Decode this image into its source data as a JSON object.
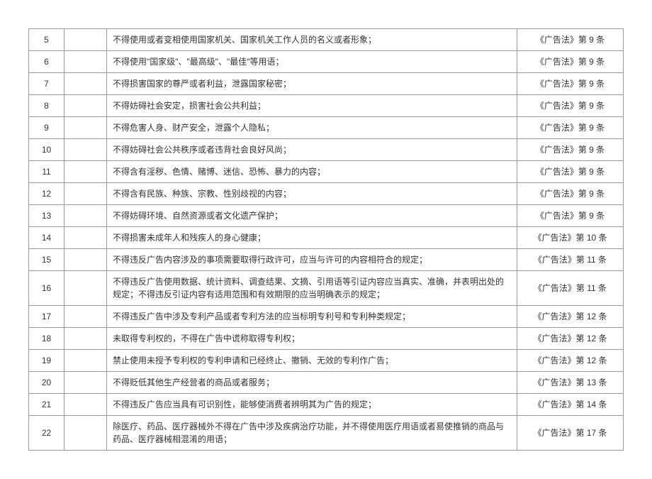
{
  "rows": [
    {
      "num": "5",
      "content": "不得使用或者变相使用国家机关、国家机关工作人员的名义或者形象；",
      "ref": "《广告法》第 9 条"
    },
    {
      "num": "6",
      "content": "不得使用\"国家级\"、\"最高级\"、\"最佳\"等用语；",
      "ref": "《广告法》第 9 条"
    },
    {
      "num": "7",
      "content": " 不得损害国家的尊严或者利益，泄露国家秘密；",
      "ref": "《广告法》第 9 条"
    },
    {
      "num": "8",
      "content": "不得妨碍社会安定，损害社会公共利益；",
      "ref": "《广告法》第 9 条"
    },
    {
      "num": "9",
      "content": "不得危害人身、财产安全，泄露个人隐私；",
      "ref": "《广告法》第 9 条"
    },
    {
      "num": "10",
      "content": "不得妨碍社会公共秩序或者违背社会良好风尚；",
      "ref": "《广告法》第 9 条"
    },
    {
      "num": "11",
      "content": "不得含有淫秽、色情、赌博、迷信、恐怖、暴力的内容；",
      "ref": "《广告法》第 9 条"
    },
    {
      "num": "12",
      "content": "不得含有民族、种族、宗教、性别歧视的内容；",
      "ref": "《广告法》第 9 条"
    },
    {
      "num": "13",
      "content": "不得妨碍环境、自然资源或者文化遗产保护；",
      "ref": "《广告法》第 9 条"
    },
    {
      "num": "14",
      "content": "不得损害未成年人和残疾人的身心健康；",
      "ref": "《广告法》第 10 条"
    },
    {
      "num": "15",
      "content": "不得违反广告内容涉及的事项需要取得行政许可，应当与许可的内容相符合的规定；",
      "ref": "《广告法》第 11 条"
    },
    {
      "num": "16",
      "content": "不得违反广告使用数据、统计资料、调查结果、文摘、引用语等引证内容应当真实、准确，并表明出处的规定；不得违反引证内容有适用范围和有效期限的应当明确表示的规定；",
      "ref": "《广告法》第 11 条"
    },
    {
      "num": "17",
      "content": "不得违反广告中涉及专利产品或者专利方法的应当标明专利号和专利种类规定；",
      "ref": "《广告法》第 12 条"
    },
    {
      "num": "18",
      "content": "未取得专利权的，不得在广告中谎称取得专利权；",
      "ref": "《广告法》第 12 条"
    },
    {
      "num": "19",
      "content": "禁止使用未授予专利权的专利申请和已经终止、撤销、无效的专利作广告；",
      "ref": "《广告法》第 12 条"
    },
    {
      "num": "20",
      "content": "不得贬低其他生产经营者的商品或者服务；",
      "ref": "《广告法》第 13 条"
    },
    {
      "num": "21",
      "content": "不得违反广告应当具有可识别性，能够使消费者辨明其为广告的规定；",
      "ref": "《广告法》第 14 条"
    },
    {
      "num": "22",
      "content": "除医疗、药品、医疗器械外不得在广告中涉及疾病治疗功能，并不得使用医疗用语或者易使推销的商品与药品、医疗器械相混淆的用语；",
      "ref": "《广告法》第 17 条"
    }
  ],
  "style": {
    "background_color": "#ffffff",
    "border_color": "#999999",
    "text_color": "#333333",
    "font_size": 12,
    "col_widths": {
      "num": 50,
      "blank": 60,
      "ref": 150
    }
  }
}
